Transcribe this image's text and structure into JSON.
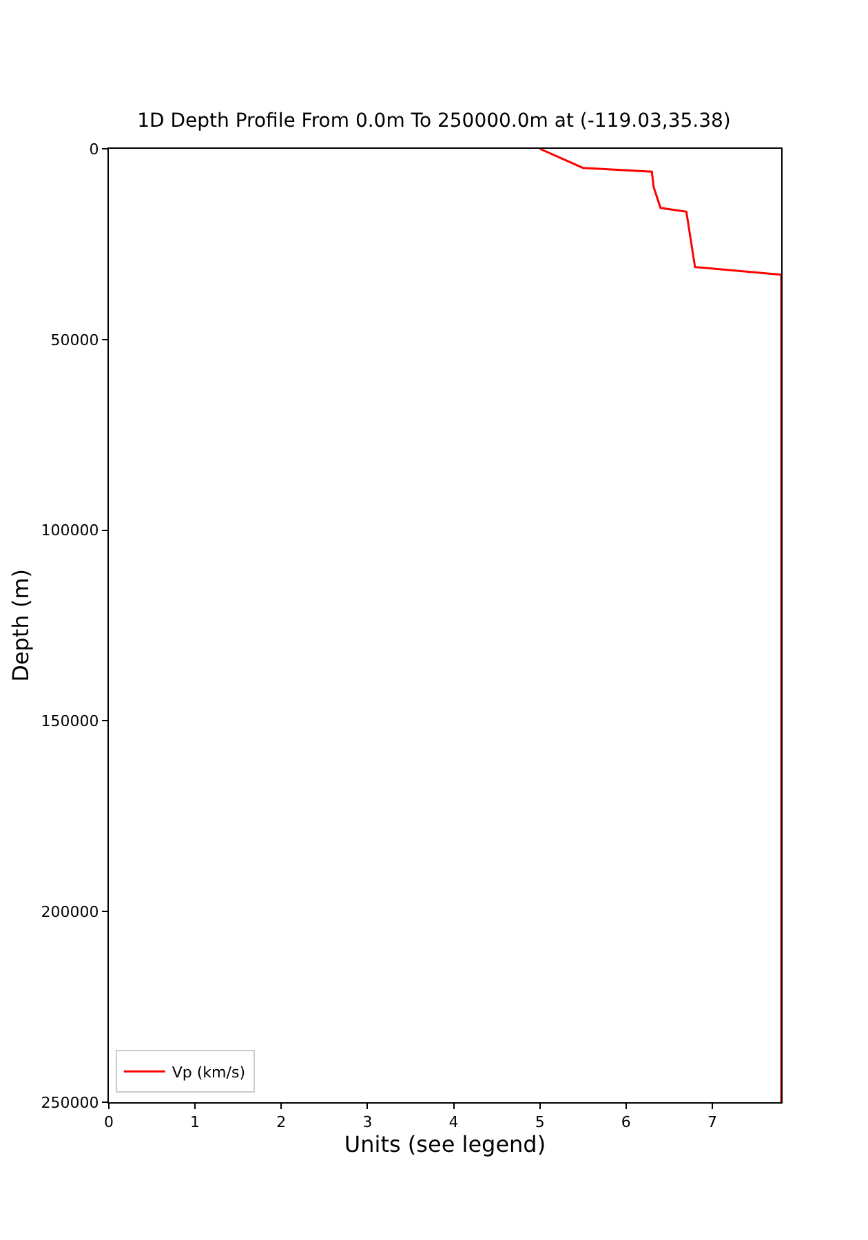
{
  "chart_data": {
    "type": "line",
    "title": "1D Depth Profile From 0.0m To 250000.0m at (-119.03,35.38)",
    "xlabel": "Units (see legend)",
    "ylabel": "Depth (m)",
    "series": [
      {
        "name": "Vp (km/s)",
        "color": "#ff0000",
        "x": [
          5.0,
          5.5,
          6.3,
          6.32,
          6.4,
          6.7,
          6.8,
          7.8,
          7.8
        ],
        "values": [
          0,
          5000,
          6000,
          10000,
          15500,
          16500,
          31000,
          33000,
          250000
        ]
      }
    ],
    "xlim": [
      0,
      7.8
    ],
    "xticks": [
      0,
      1,
      2,
      3,
      4,
      5,
      6,
      7
    ],
    "ylim": [
      250000,
      0
    ],
    "yticks": [
      0,
      50000,
      100000,
      150000,
      200000,
      250000
    ],
    "legend": "bottom left",
    "marker": "none",
    "line_style": "solid"
  }
}
